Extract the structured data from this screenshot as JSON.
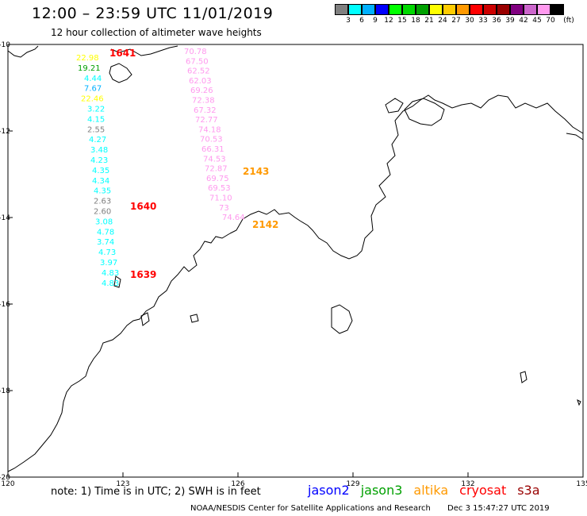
{
  "header": {
    "title": "12:00 – 23:59 UTC 11/01/2019",
    "subtitle": "12 hour collection of altimeter wave heights"
  },
  "legend": {
    "unit": "(ft)",
    "colors": [
      "#808080",
      "#00ffff",
      "#00b0ff",
      "#0000ff",
      "#00ff00",
      "#00d800",
      "#00a000",
      "#ffff00",
      "#ffcc00",
      "#ff9900",
      "#ff0000",
      "#cc0000",
      "#990000",
      "#800080",
      "#cc66cc",
      "#ff99ee",
      "#000000"
    ],
    "labels": [
      "3",
      "6",
      "9",
      "12",
      "15",
      "18",
      "21",
      "24",
      "27",
      "30",
      "33",
      "36",
      "39",
      "42",
      "45",
      "70"
    ]
  },
  "map": {
    "lon_range": [
      120,
      135
    ],
    "lat_range": [
      -20,
      -10
    ],
    "x_ticks": [
      "120",
      "123",
      "126",
      "129",
      "132",
      "135"
    ],
    "y_ticks": [
      "-10",
      "-12",
      "-14",
      "-16",
      "-18",
      "-20"
    ]
  },
  "track_labels": [
    {
      "text": "1641",
      "color": "#ff0000"
    },
    {
      "text": "1640",
      "color": "#ff0000"
    },
    {
      "text": "1639",
      "color": "#ff0000"
    },
    {
      "text": "2143",
      "color": "#ff9900"
    },
    {
      "text": "2142",
      "color": "#ff9900"
    }
  ],
  "tracks": [
    {
      "name": "track-1",
      "values": [
        {
          "v": "22.98",
          "c": "#ffff00"
        },
        {
          "v": "19.21",
          "c": "#00a000"
        },
        {
          "v": "4.44",
          "c": "#00ffff"
        },
        {
          "v": "7.67",
          "c": "#00b0ff"
        },
        {
          "v": "22.46",
          "c": "#ffff00"
        },
        {
          "v": "3.22",
          "c": "#00ffff"
        },
        {
          "v": "4.15",
          "c": "#00ffff"
        },
        {
          "v": "2.55",
          "c": "#808080"
        },
        {
          "v": "4.27",
          "c": "#00ffff"
        },
        {
          "v": "3.48",
          "c": "#00ffff"
        },
        {
          "v": "4.23",
          "c": "#00ffff"
        },
        {
          "v": "4.35",
          "c": "#00ffff"
        },
        {
          "v": "4.34",
          "c": "#00ffff"
        },
        {
          "v": "4.35",
          "c": "#00ffff"
        },
        {
          "v": "2.63",
          "c": "#808080"
        },
        {
          "v": "2.60",
          "c": "#808080"
        },
        {
          "v": "3.08",
          "c": "#00ffff"
        },
        {
          "v": "4.78",
          "c": "#00ffff"
        },
        {
          "v": "3.74",
          "c": "#00ffff"
        },
        {
          "v": "4.73",
          "c": "#00ffff"
        },
        {
          "v": "3.97",
          "c": "#00ffff"
        },
        {
          "v": "4.83",
          "c": "#00ffff"
        },
        {
          "v": "4.83",
          "c": "#00ffff"
        }
      ]
    },
    {
      "name": "track-2",
      "values": [
        {
          "v": "70.78",
          "c": "#ff99ee"
        },
        {
          "v": "67.50",
          "c": "#ff99ee"
        },
        {
          "v": "62.52",
          "c": "#ff99ee"
        },
        {
          "v": "62.03",
          "c": "#ff99ee"
        },
        {
          "v": "69.26",
          "c": "#ff99ee"
        },
        {
          "v": "72.38",
          "c": "#ff99ee"
        },
        {
          "v": "67.32",
          "c": "#ff99ee"
        },
        {
          "v": "72.77",
          "c": "#ff99ee"
        },
        {
          "v": "74.18",
          "c": "#ff99ee"
        },
        {
          "v": "70.53",
          "c": "#ff99ee"
        },
        {
          "v": "66.31",
          "c": "#ff99ee"
        },
        {
          "v": "74.53",
          "c": "#ff99ee"
        },
        {
          "v": "72.87",
          "c": "#ff99ee"
        },
        {
          "v": "69.75",
          "c": "#ff99ee"
        },
        {
          "v": "69.53",
          "c": "#ff99ee"
        },
        {
          "v": "71.10",
          "c": "#ff99ee"
        },
        {
          "v": "73",
          "c": "#ff99ee"
        },
        {
          "v": "74.64",
          "c": "#ff99ee"
        }
      ]
    }
  ],
  "note": "note: 1) Time is in UTC; 2) SWH is in feet",
  "satellites": [
    {
      "name": "jason2",
      "color": "#0000ff"
    },
    {
      "name": "jason3",
      "color": "#00a000"
    },
    {
      "name": "altika",
      "color": "#ff9900"
    },
    {
      "name": "cryosat",
      "color": "#ff0000"
    },
    {
      "name": "s3a",
      "color": "#990000"
    }
  ],
  "footer": {
    "credit": "NOAA/NESDIS Center for Satellite Applications and Research",
    "timestamp": "Dec  3 15:47:27 UTC 2019"
  }
}
